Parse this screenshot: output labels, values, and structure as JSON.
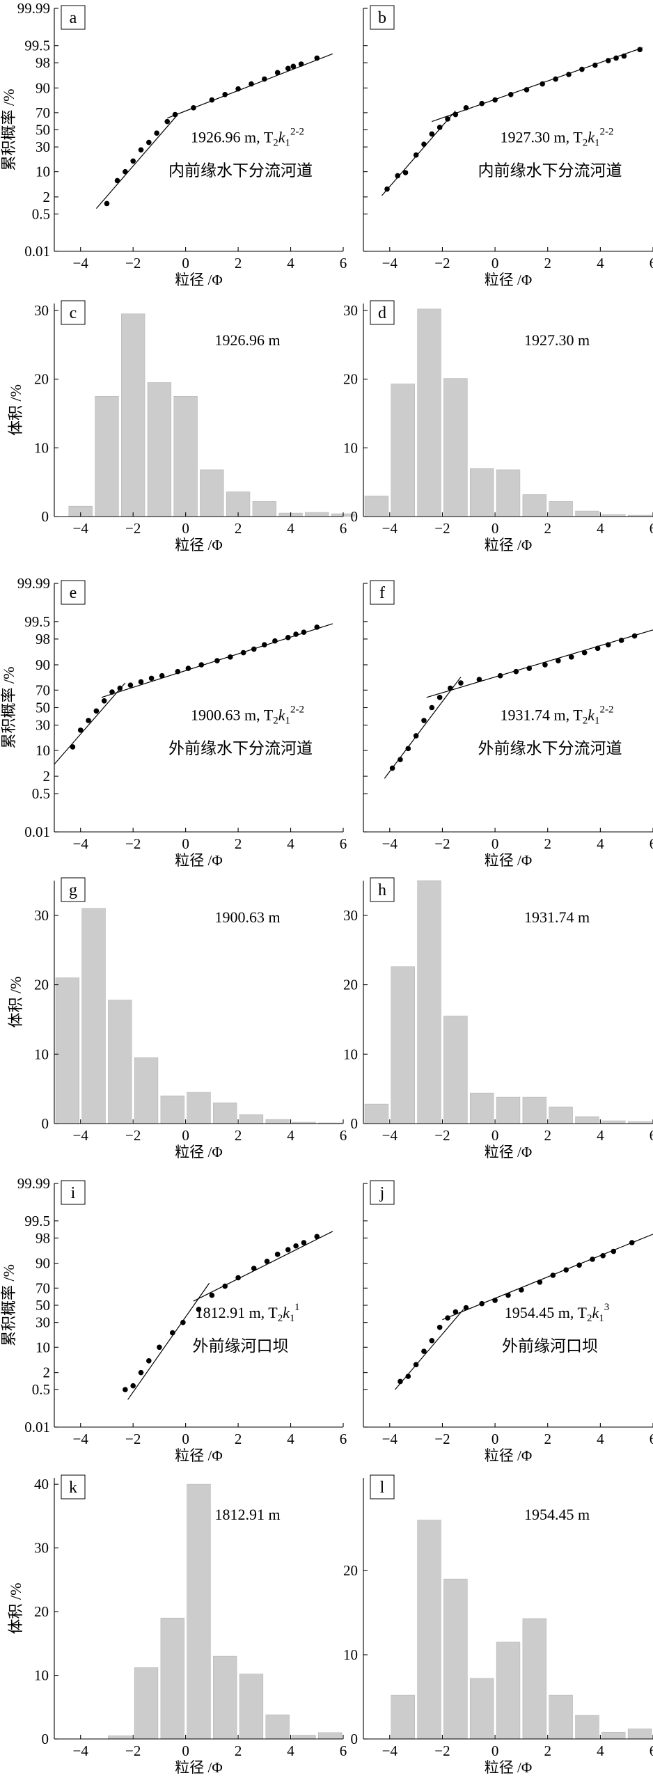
{
  "colors": {
    "bar": "#cccccc",
    "axis": "#000000",
    "background": "#ffffff"
  },
  "axis_text": {
    "x_label": "粒径 /Φ",
    "y_label_cum": "累积概率 /%",
    "y_label_vol": "体积 /%",
    "x_ticks": [
      "−4",
      "−2",
      "0",
      "2",
      "4",
      "6"
    ],
    "prob_ticks": [
      "0.01",
      "0.5",
      "2",
      "10",
      "30",
      "50",
      "70",
      "90",
      "98",
      "99.5",
      "99.99"
    ]
  },
  "chart_data": [
    {
      "id": "a",
      "type": "scatter",
      "scale": "probability",
      "label": "a",
      "xlabel": "粒径 /Φ",
      "ylabel": "累积概率 /%",
      "xlim": [
        -5,
        6
      ],
      "ylim": [
        0.01,
        99.99
      ],
      "depth": "1926.96 m, T",
      "sub1": "2",
      "mid": "k",
      "sub2": "1",
      "sup": "2-2",
      "facies": "内前缘水下分流河道",
      "points": [
        [
          -3.0,
          1.2
        ],
        [
          -2.6,
          6
        ],
        [
          -2.3,
          10
        ],
        [
          -2.0,
          17
        ],
        [
          -1.7,
          27
        ],
        [
          -1.4,
          35
        ],
        [
          -1.1,
          46
        ],
        [
          -0.7,
          60
        ],
        [
          -0.4,
          68
        ],
        [
          0.3,
          75
        ],
        [
          1.0,
          82
        ],
        [
          1.5,
          86
        ],
        [
          2.0,
          89.5
        ],
        [
          2.5,
          92
        ],
        [
          3.0,
          94
        ],
        [
          3.5,
          96
        ],
        [
          3.9,
          97
        ],
        [
          4.1,
          97.4
        ],
        [
          4.4,
          97.8
        ],
        [
          5.0,
          98.6
        ]
      ],
      "fit_lines": [
        [
          [
            -3.4,
            0.8
          ],
          [
            -0.3,
            68
          ]
        ],
        [
          [
            -0.7,
            64
          ],
          [
            5.6,
            99.0
          ]
        ]
      ]
    },
    {
      "id": "b",
      "type": "scatter",
      "scale": "probability",
      "label": "b",
      "xlabel": "粒径 /Φ",
      "ylabel": "",
      "xlim": [
        -5,
        6
      ],
      "ylim": [
        0.01,
        99.99
      ],
      "depth": "1927.30 m, T",
      "sub1": "2",
      "mid": "k",
      "sub2": "1",
      "sup": "2-2",
      "facies": "内前缘水下分流河道",
      "points": [
        [
          -4.1,
          3.5
        ],
        [
          -3.7,
          8
        ],
        [
          -3.4,
          9.5
        ],
        [
          -3.0,
          22
        ],
        [
          -2.7,
          33
        ],
        [
          -2.4,
          45
        ],
        [
          -2.1,
          53
        ],
        [
          -1.8,
          63
        ],
        [
          -1.5,
          68
        ],
        [
          -1.1,
          75
        ],
        [
          -0.5,
          79
        ],
        [
          0.0,
          82
        ],
        [
          0.6,
          86
        ],
        [
          1.2,
          89
        ],
        [
          1.8,
          92
        ],
        [
          2.3,
          94
        ],
        [
          2.8,
          95.5
        ],
        [
          3.3,
          96.8
        ],
        [
          3.8,
          97.6
        ],
        [
          4.3,
          98.3
        ],
        [
          4.6,
          98.6
        ],
        [
          4.9,
          98.8
        ],
        [
          5.5,
          99.3
        ]
      ],
      "fit_lines": [
        [
          [
            -4.3,
            2.2
          ],
          [
            -1.5,
            72
          ]
        ],
        [
          [
            -2.4,
            60
          ],
          [
            5.6,
            99.4
          ]
        ]
      ]
    },
    {
      "id": "c",
      "type": "bar",
      "scale": "linear",
      "label": "c",
      "xlabel": "粒径 /Φ",
      "ylabel": "体积 /%",
      "xlim": [
        -5,
        6
      ],
      "ylim": [
        0,
        31
      ],
      "yticks": [
        0,
        10,
        20,
        30
      ],
      "depth_label": "1926.96 m",
      "categories": [
        -4.0,
        -3.0,
        -2.0,
        -1.0,
        0.0,
        1.0,
        2.0,
        3.0,
        4.0,
        5.0,
        6.0
      ],
      "values": [
        1.5,
        17.5,
        29.5,
        19.5,
        17.5,
        6.8,
        3.6,
        2.2,
        0.5,
        0.6,
        0.4
      ]
    },
    {
      "id": "d",
      "type": "bar",
      "scale": "linear",
      "label": "d",
      "xlabel": "粒径 /Φ",
      "ylabel": "",
      "xlim": [
        -5,
        6
      ],
      "ylim": [
        0,
        31
      ],
      "yticks": [
        0,
        10,
        20,
        30
      ],
      "depth_label": "1927.30 m",
      "categories": [
        -4.5,
        -3.5,
        -2.5,
        -1.5,
        -0.5,
        0.5,
        1.5,
        2.5,
        3.5,
        4.5,
        5.5
      ],
      "values": [
        3.0,
        19.3,
        30.2,
        20.1,
        7.0,
        6.8,
        3.2,
        2.2,
        0.8,
        0.3,
        0.2
      ]
    },
    {
      "id": "e",
      "type": "scatter",
      "scale": "probability",
      "label": "e",
      "xlabel": "粒径 /Φ",
      "ylabel": "累积概率 /%",
      "xlim": [
        -5,
        6
      ],
      "ylim": [
        0.01,
        99.99
      ],
      "depth": "1900.63 m, T",
      "sub1": "2",
      "mid": "k",
      "sub2": "1",
      "sup": "2-2",
      "facies": "外前缘水下分流河道",
      "points": [
        [
          -4.3,
          12
        ],
        [
          -4.0,
          25
        ],
        [
          -3.7,
          35
        ],
        [
          -3.4,
          46
        ],
        [
          -3.1,
          58
        ],
        [
          -2.8,
          68
        ],
        [
          -2.5,
          72
        ],
        [
          -2.1,
          75
        ],
        [
          -1.7,
          78
        ],
        [
          -1.3,
          81
        ],
        [
          -0.9,
          83
        ],
        [
          -0.3,
          86
        ],
        [
          0.1,
          88
        ],
        [
          0.6,
          90
        ],
        [
          1.2,
          92
        ],
        [
          1.7,
          93.5
        ],
        [
          2.2,
          95
        ],
        [
          2.6,
          96
        ],
        [
          3.0,
          97
        ],
        [
          3.4,
          97.7
        ],
        [
          3.9,
          98.2
        ],
        [
          4.2,
          98.6
        ],
        [
          4.5,
          98.8
        ],
        [
          5.0,
          99.2
        ]
      ],
      "fit_lines": [
        [
          [
            -5.0,
            4.5
          ],
          [
            -2.3,
            77
          ]
        ],
        [
          [
            -3.2,
            62
          ],
          [
            5.6,
            99.4
          ]
        ]
      ]
    },
    {
      "id": "f",
      "type": "scatter",
      "scale": "probability",
      "label": "f",
      "xlabel": "粒径 /Φ",
      "ylabel": "",
      "xlim": [
        -5,
        6
      ],
      "ylim": [
        0.01,
        99.99
      ],
      "depth": "1931.74 m, T",
      "sub1": "2",
      "mid": "k",
      "sub2": "1",
      "sup": "2-2",
      "facies": "外前缘水下分流河道",
      "points": [
        [
          -3.9,
          3.5
        ],
        [
          -3.6,
          6
        ],
        [
          -3.3,
          11
        ],
        [
          -3.0,
          20
        ],
        [
          -2.7,
          35
        ],
        [
          -2.4,
          50
        ],
        [
          -2.1,
          62
        ],
        [
          -1.7,
          72
        ],
        [
          -1.3,
          77
        ],
        [
          -0.6,
          80
        ],
        [
          0.2,
          83
        ],
        [
          0.8,
          86
        ],
        [
          1.3,
          88
        ],
        [
          1.9,
          90
        ],
        [
          2.4,
          92
        ],
        [
          2.9,
          93.5
        ],
        [
          3.4,
          95
        ],
        [
          3.9,
          96.2
        ],
        [
          4.3,
          97
        ],
        [
          4.8,
          97.8
        ],
        [
          5.3,
          98.4
        ]
      ],
      "fit_lines": [
        [
          [
            -4.2,
            1.7
          ],
          [
            -1.3,
            82
          ]
        ],
        [
          [
            -2.6,
            62
          ],
          [
            6.0,
            99.0
          ]
        ]
      ]
    },
    {
      "id": "g",
      "type": "bar",
      "scale": "linear",
      "label": "g",
      "xlabel": "粒径 /Φ",
      "ylabel": "体积 /%",
      "xlim": [
        -5,
        6
      ],
      "ylim": [
        0,
        35
      ],
      "yticks": [
        0,
        10,
        20,
        30
      ],
      "depth_label": "1900.63 m",
      "categories": [
        -4.5,
        -3.5,
        -2.5,
        -1.5,
        -0.5,
        0.5,
        1.5,
        2.5,
        3.5,
        4.5,
        5.5
      ],
      "values": [
        21.0,
        31.0,
        17.8,
        9.5,
        4.0,
        4.5,
        3.0,
        1.3,
        0.6,
        0.2,
        0.1
      ]
    },
    {
      "id": "h",
      "type": "bar",
      "scale": "linear",
      "label": "h",
      "xlabel": "粒径 /Φ",
      "ylabel": "",
      "xlim": [
        -5,
        6
      ],
      "ylim": [
        0,
        35
      ],
      "yticks": [
        0,
        10,
        20,
        30
      ],
      "depth_label": "1931.74 m",
      "categories": [
        -4.5,
        -3.5,
        -2.5,
        -1.5,
        -0.5,
        0.5,
        1.5,
        2.5,
        3.5,
        4.5,
        5.5
      ],
      "values": [
        2.8,
        22.6,
        35.0,
        15.5,
        4.4,
        3.8,
        3.8,
        2.4,
        1.0,
        0.4,
        0.3
      ]
    },
    {
      "id": "i",
      "type": "scatter",
      "scale": "probability",
      "label": "i",
      "xlabel": "粒径 /Φ",
      "ylabel": "累积概率 /%",
      "xlim": [
        -5,
        6
      ],
      "ylim": [
        0.01,
        99.99
      ],
      "depth": "1812.91 m, T",
      "sub1": "2",
      "mid": "k",
      "sub2": "1",
      "sup": "1",
      "facies": "外前缘河口坝",
      "points": [
        [
          -2.3,
          0.5
        ],
        [
          -2.0,
          0.7
        ],
        [
          -1.7,
          2
        ],
        [
          -1.4,
          4.5
        ],
        [
          -1.0,
          10
        ],
        [
          -0.5,
          20
        ],
        [
          -0.1,
          30
        ],
        [
          0.5,
          45
        ],
        [
          1.0,
          62
        ],
        [
          1.5,
          72
        ],
        [
          2.0,
          80
        ],
        [
          2.6,
          87
        ],
        [
          3.1,
          91
        ],
        [
          3.5,
          94
        ],
        [
          3.9,
          95.5
        ],
        [
          4.2,
          96.5
        ],
        [
          4.5,
          97.2
        ],
        [
          5.0,
          98.2
        ]
      ],
      "fit_lines": [
        [
          [
            -2.2,
            0.2
          ],
          [
            0.9,
            75
          ]
        ],
        [
          [
            0.3,
            55
          ],
          [
            5.6,
            98.8
          ]
        ]
      ]
    },
    {
      "id": "j",
      "type": "scatter",
      "scale": "probability",
      "label": "j",
      "xlabel": "粒径 /Φ",
      "ylabel": "",
      "xlim": [
        -5,
        6
      ],
      "ylim": [
        0.01,
        99.99
      ],
      "depth": "1954.45 m, T",
      "sub1": "2",
      "mid": "k",
      "sub2": "1",
      "sup": "3",
      "facies": "外前缘河口坝",
      "points": [
        [
          -3.6,
          1
        ],
        [
          -3.3,
          1.5
        ],
        [
          -3.0,
          3.5
        ],
        [
          -2.7,
          8
        ],
        [
          -2.4,
          14
        ],
        [
          -2.1,
          25
        ],
        [
          -1.8,
          35
        ],
        [
          -1.5,
          42
        ],
        [
          -1.1,
          47
        ],
        [
          -0.5,
          52
        ],
        [
          0.0,
          56
        ],
        [
          0.5,
          62
        ],
        [
          1.0,
          68
        ],
        [
          1.7,
          76
        ],
        [
          2.2,
          82
        ],
        [
          2.7,
          86
        ],
        [
          3.2,
          89
        ],
        [
          3.7,
          92
        ],
        [
          4.1,
          93.5
        ],
        [
          4.5,
          95
        ],
        [
          5.2,
          97.2
        ]
      ],
      "fit_lines": [
        [
          [
            -3.8,
            0.5
          ],
          [
            -1.2,
            45
          ]
        ],
        [
          [
            -2.0,
            33
          ],
          [
            6.0,
            98.5
          ]
        ]
      ]
    },
    {
      "id": "k",
      "type": "bar",
      "scale": "linear",
      "label": "k",
      "xlabel": "粒径 /Φ",
      "ylabel": "体积 /%",
      "xlim": [
        -5,
        6
      ],
      "ylim": [
        0,
        41
      ],
      "yticks": [
        0,
        10,
        20,
        30,
        40
      ],
      "depth_label": "1812.91 m",
      "categories": [
        -2.5,
        -1.5,
        -0.5,
        0.5,
        1.5,
        2.5,
        3.5,
        4.5,
        5.5
      ],
      "values": [
        0.5,
        11.2,
        19.0,
        40.0,
        13.0,
        10.2,
        3.8,
        0.6,
        1.0
      ]
    },
    {
      "id": "l",
      "type": "bar",
      "scale": "linear",
      "label": "l",
      "xlabel": "粒径 /Φ",
      "ylabel": "",
      "xlim": [
        -5,
        6
      ],
      "ylim": [
        0,
        31
      ],
      "yticks": [
        0,
        10,
        20
      ],
      "depth_label": "1954.45 m",
      "categories": [
        -3.5,
        -2.5,
        -1.5,
        -0.5,
        0.5,
        1.5,
        2.5,
        3.5,
        4.5,
        5.5
      ],
      "values": [
        5.2,
        26.0,
        19.0,
        7.2,
        11.5,
        14.3,
        5.2,
        2.8,
        0.8,
        1.2
      ]
    }
  ]
}
